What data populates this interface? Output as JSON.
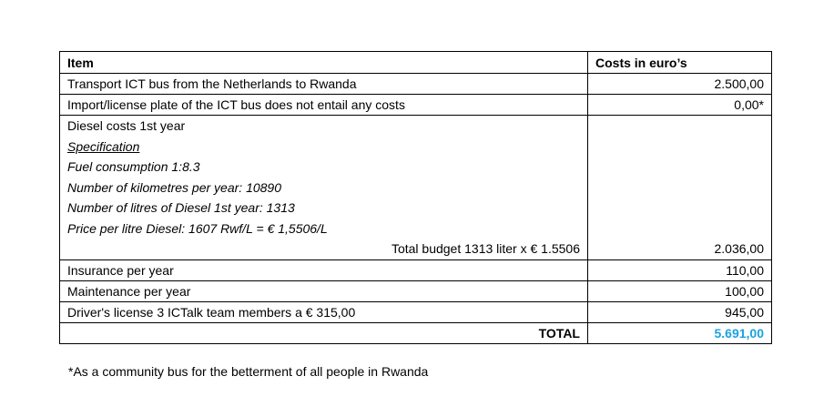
{
  "table": {
    "headers": [
      "Item",
      "Costs in euro’s"
    ],
    "rows": [
      {
        "item": "Transport ICT bus from the Netherlands to Rwanda",
        "cost": "2.500,00"
      },
      {
        "item": "Import/license plate of the ICT bus does not entail any costs",
        "cost": "0,00*"
      }
    ],
    "diesel": {
      "title": "Diesel costs 1st year",
      "spec_label": "Specification",
      "lines": [
        "Fuel consumption 1:8.3",
        "Number of kilometres per year: 10890",
        "Number of litres of Diesel 1st year: 1313",
        "Price per litre Diesel: 1607 Rwf/L = € 1,5506/L"
      ],
      "total_line": "Total budget 1313 liter x € 1.5506",
      "cost": "2.036,00"
    },
    "rows2": [
      {
        "item": "Insurance per year",
        "cost": "110,00"
      },
      {
        "item": "Maintenance per year",
        "cost": "100,00"
      },
      {
        "item": "Driver's license 3 ICTalk team members a € 315,00",
        "cost": "945,00"
      }
    ],
    "total_label": "TOTAL",
    "total_value": "5.691,00",
    "total_color": "#1aa3e0"
  },
  "footnote": "*As a community bus for the betterment of all people in Rwanda"
}
